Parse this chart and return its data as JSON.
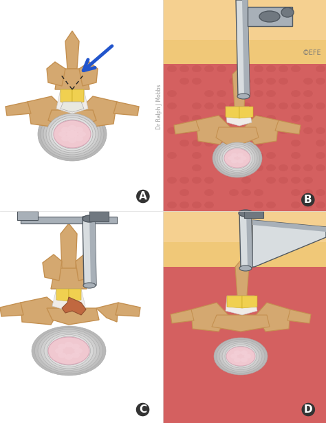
{
  "background_color": "#ffffff",
  "panel_labels": [
    "A",
    "B",
    "C",
    "D"
  ],
  "panel_label_color": "#1a1a1a",
  "panel_label_fontsize": 11,
  "watermark_text": "Dr Ralph J Mobbs",
  "watermark_color": "#999999",
  "copyright_text": "©EFE",
  "copyright_color": "#777777",
  "arrow_color": "#2255cc",
  "bone_color": "#d4a870",
  "bone_edge": "#c49050",
  "bone_shadow": "#c08040",
  "disc_rings": [
    "#b8b8b8",
    "#c0c0c0",
    "#c8c8c8",
    "#d0d0d0",
    "#d8d8d8",
    "#e0e0e0",
    "#e8e8e8",
    "#f0f0f0"
  ],
  "disc_inner": "#f0c8d0",
  "disc_inner_edge": "#d8a8b8",
  "fat_color": "#f0d050",
  "fat_edge": "#d8b830",
  "muscle_bg": "#d46060",
  "muscle_texture": "#c05050",
  "fascia_color": "#f0c878",
  "skin_color": "#f5d090",
  "instrument_light": "#d8dde0",
  "instrument_mid": "#a8b0b8",
  "instrument_dark": "#707880",
  "instrument_edge": "#505860",
  "dashed_color": "#222222",
  "nerve_color": "#e8d0b8",
  "white_matter": "#f8f5f0",
  "canal_color": "#f0ece8"
}
